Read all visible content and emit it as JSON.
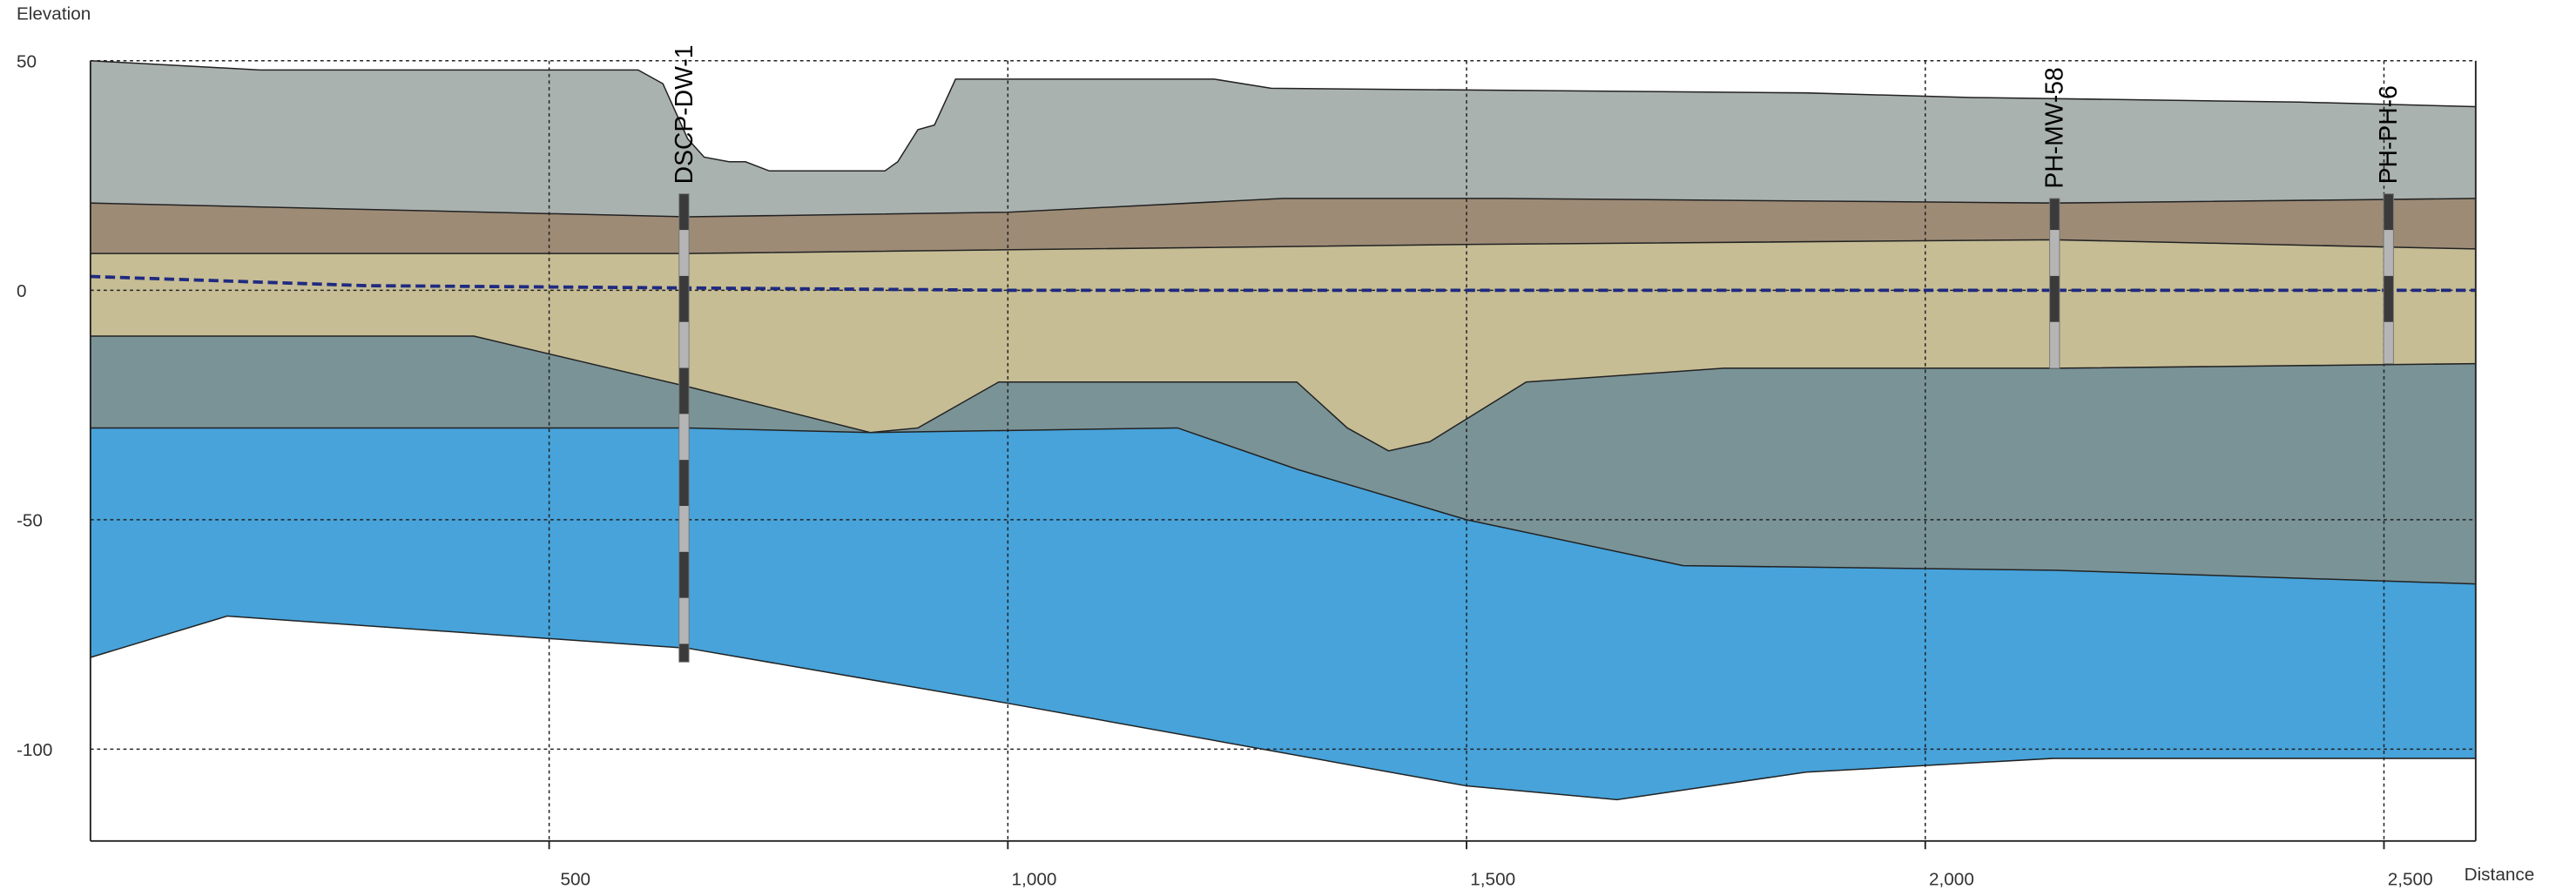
{
  "chart_data": {
    "type": "cross-section",
    "y_label": "Elevation",
    "x_label": "Distance",
    "xlim": [
      0,
      2600
    ],
    "ylim": [
      -120,
      50
    ],
    "xticks": [
      500,
      {
        "value": 1000,
        "label": "1,000"
      },
      {
        "value": 1500,
        "label": "1,500"
      },
      {
        "value": 2000,
        "label": "2,000"
      },
      {
        "value": 2500,
        "label": "2,500"
      }
    ],
    "yticks": [
      50,
      0,
      -50,
      -100
    ],
    "grid": true,
    "surfaces": [
      {
        "color": "#aab2b0",
        "x": [
          0,
          185,
          597,
          624,
          651,
          669,
          696,
          714,
          740,
          866,
          880,
          902,
          920,
          943,
          1225,
          1287,
          1870,
          2050,
          2408,
          2600
        ],
        "y": [
          50,
          48,
          48,
          45,
          33,
          29,
          28,
          28,
          26,
          26,
          28,
          35,
          36,
          46,
          46,
          44,
          43,
          42,
          41,
          40
        ]
      },
      {
        "color": "#9d8b76",
        "x": [
          0,
          651,
          1000,
          1300,
          1540,
          2140,
          2600
        ],
        "y": [
          19,
          16,
          17,
          20,
          20,
          19,
          20
        ]
      },
      {
        "color": "#c6bd95",
        "x": [
          0,
          651,
          1510,
          2140,
          2600
        ],
        "y": [
          8,
          8,
          10,
          11,
          9
        ]
      },
      {
        "color": "#7a9397",
        "x": [
          0,
          418,
          651,
          850,
          902,
          990,
          1315,
          1370,
          1415,
          1460,
          1565,
          1780,
          2140,
          2600
        ],
        "y": [
          -10,
          -10,
          -21,
          -31,
          -30,
          -20,
          -20,
          -30,
          -35,
          -33,
          -20,
          -17,
          -17,
          -16
        ]
      },
      {
        "color": "#47a3da",
        "x": [
          0,
          651,
          850,
          1185,
          1315,
          1500,
          1736,
          2140,
          2600
        ],
        "y": [
          -30,
          -30,
          -31,
          -30,
          -39,
          -50,
          -60,
          -61,
          -64
        ]
      },
      {
        "color": "#ffffff",
        "x": [
          0,
          149,
          651,
          1000,
          1500,
          1664,
          1870,
          2140,
          2600
        ],
        "y": [
          -80,
          -71,
          -78,
          -90,
          -108,
          -111,
          -105,
          -102,
          -102
        ]
      }
    ],
    "water_table": {
      "color": "#1f2a80",
      "x": [
        0,
        300,
        1000,
        2600
      ],
      "y": [
        3,
        1,
        0,
        0
      ]
    },
    "wells": [
      {
        "name": "DSCP-DW-1",
        "x": 647,
        "top": 21,
        "bottom": -81
      },
      {
        "name": "PH-MW-58",
        "x": 2141,
        "top": 20,
        "bottom": -17
      },
      {
        "name": "PH-PH-6",
        "x": 2505,
        "top": 21,
        "bottom": -16
      }
    ]
  }
}
